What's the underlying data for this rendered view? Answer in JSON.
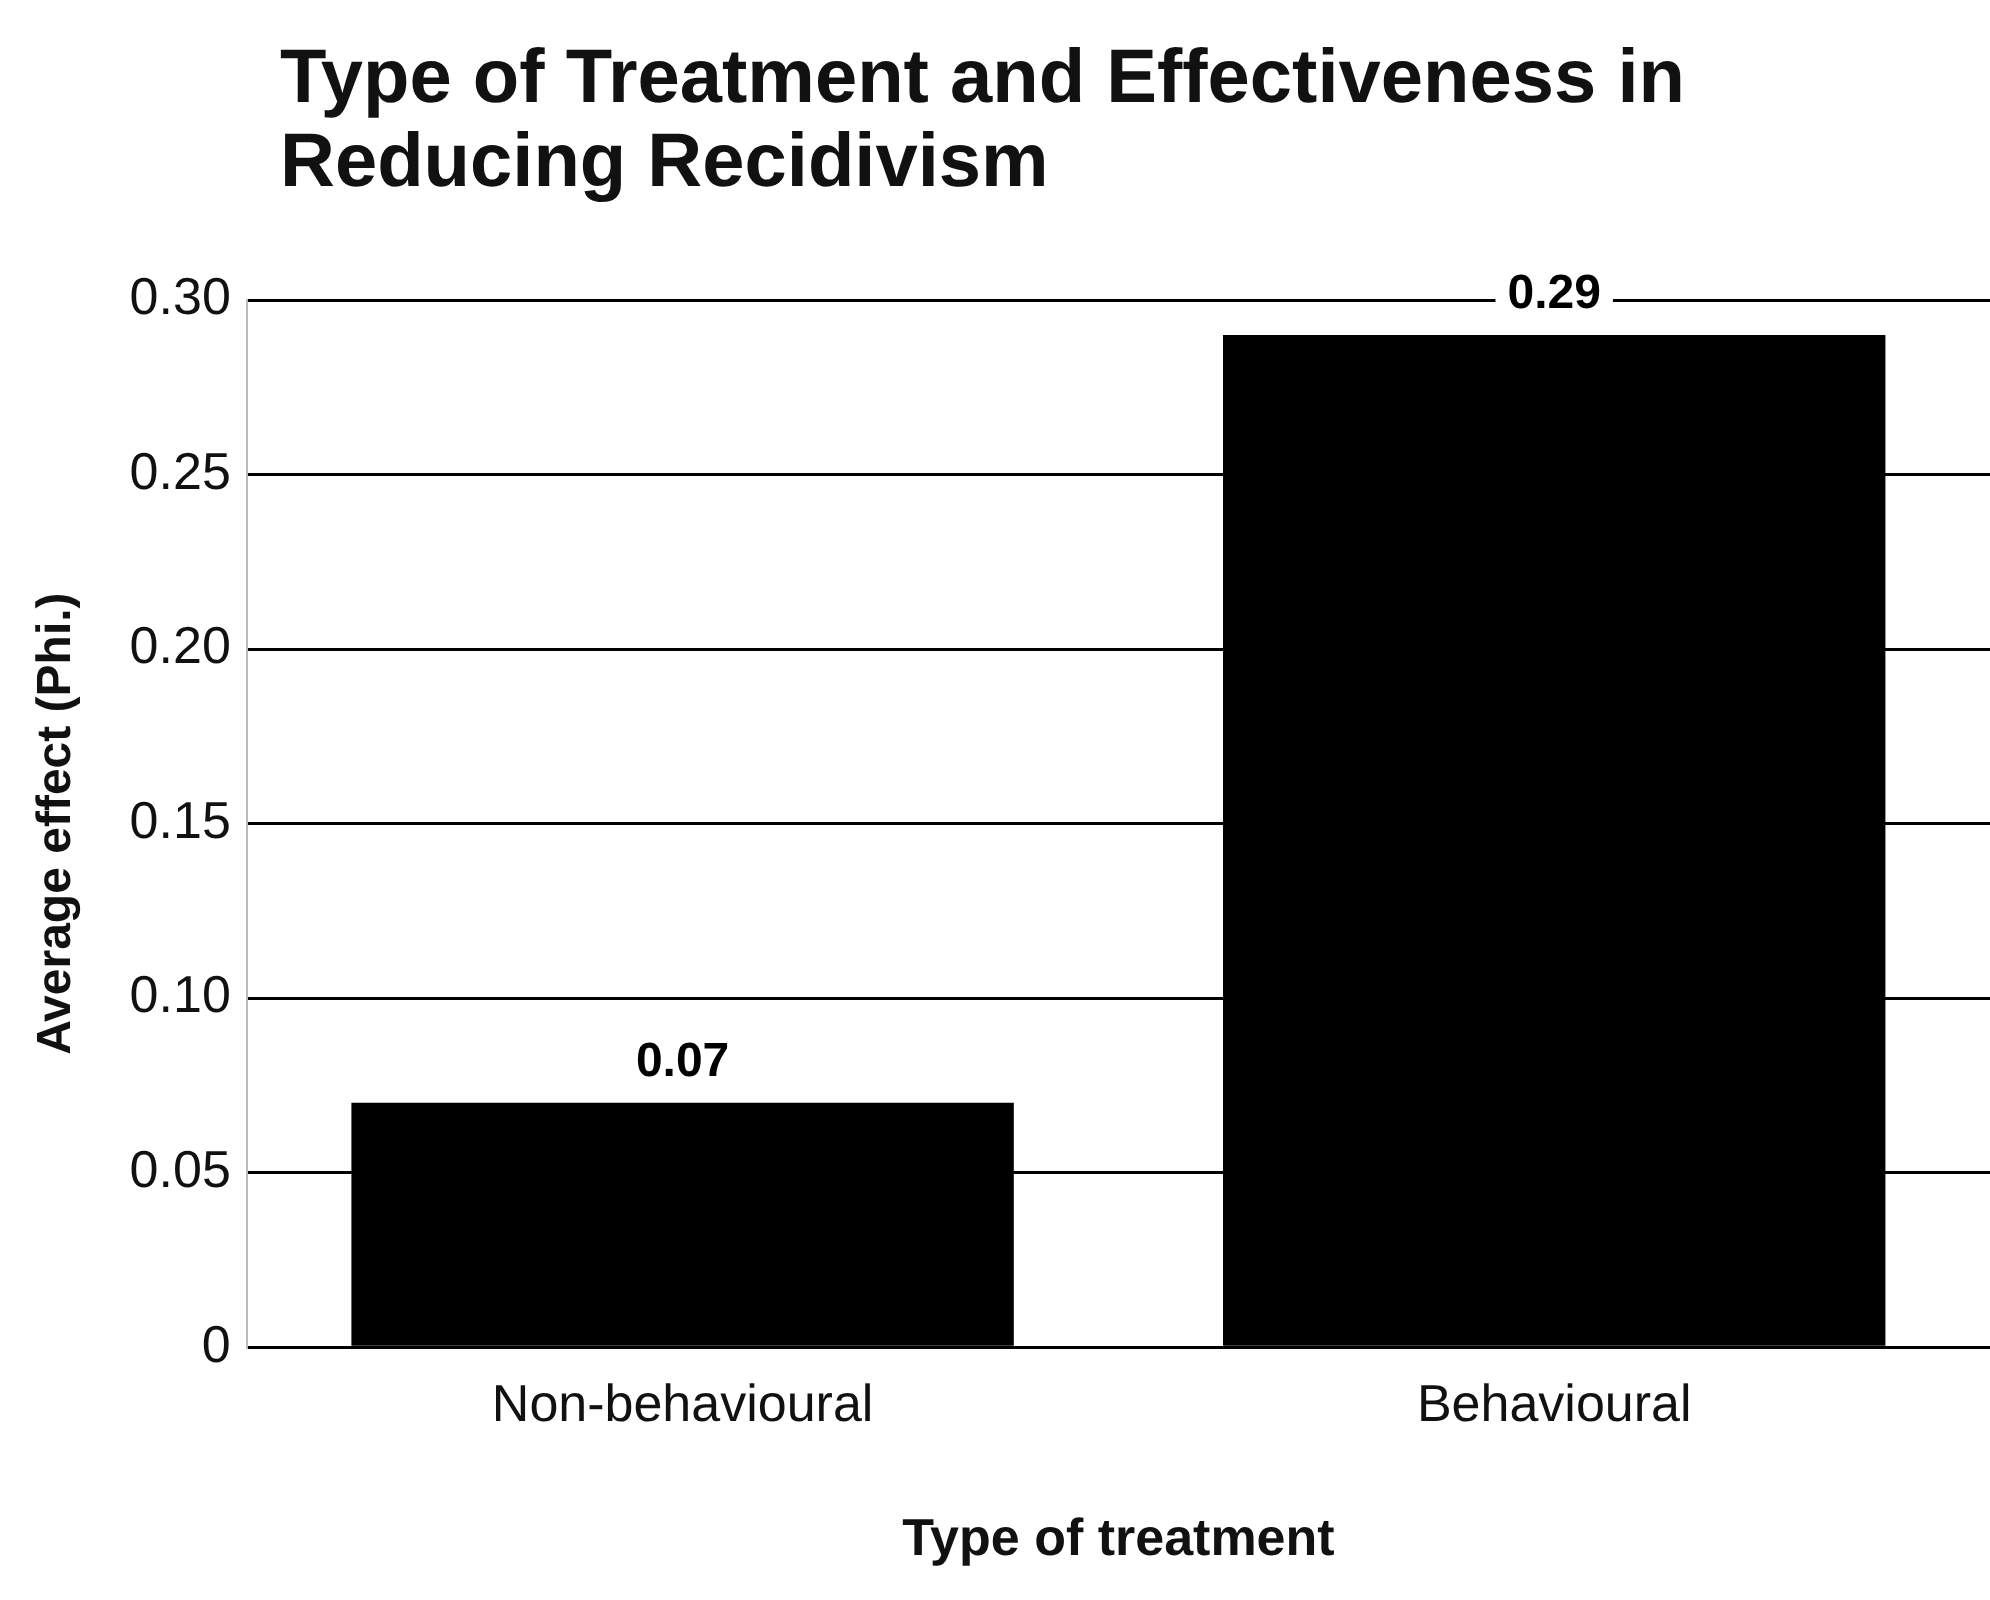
{
  "chart_data": {
    "type": "bar",
    "title": "Type of Treatment and Effectiveness in Reducing Recidivism",
    "xlabel": "Type of treatment",
    "ylabel": "Average effect (Phi.)",
    "categories": [
      "Non-behavioural",
      "Behavioural"
    ],
    "values": [
      0.07,
      0.29
    ],
    "color": "#000000",
    "ylim": [
      0,
      0.3
    ],
    "yticks": [
      0,
      0.05,
      {
        "value": 0.1,
        "label": "0.10"
      },
      0.15,
      {
        "value": 0.2,
        "label": "0.20"
      },
      0.25,
      {
        "value": 0.3,
        "label": "0.30"
      }
    ],
    "grid": "y",
    "data_labels": true,
    "legend": false
  }
}
